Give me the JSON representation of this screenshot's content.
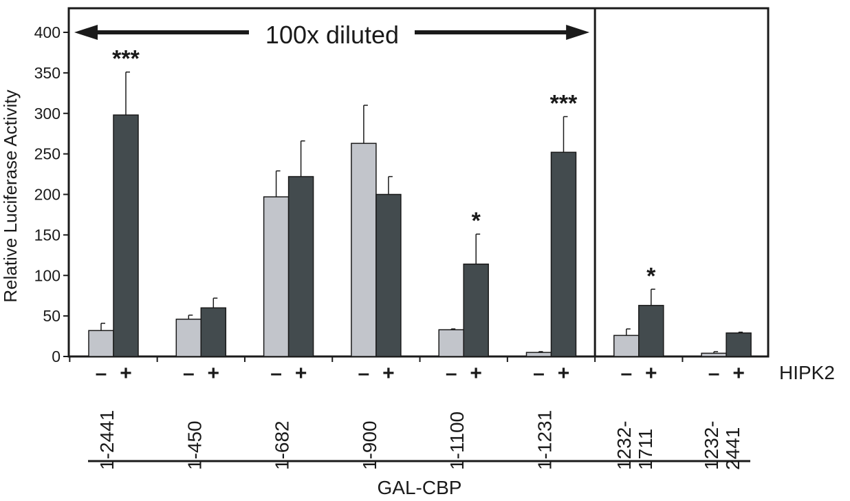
{
  "chart_data": {
    "type": "bar",
    "ylabel": "Relative Luciferase Activity",
    "xlabel": "GAL-CBP",
    "ylim": [
      0,
      400
    ],
    "yticks": [
      "0",
      "50",
      "100",
      "150",
      "200",
      "250",
      "300",
      "350",
      "400"
    ],
    "categories": [
      "1-2441",
      "1-450",
      "1-682",
      "1-900",
      "1-1100",
      "1-1231",
      "1232-\n1711",
      "1232-\n2441"
    ],
    "condition_label": "HIPK2",
    "condition_symbols": [
      "–",
      "+"
    ],
    "series": [
      {
        "condition": "–",
        "color": "#c2c5cb",
        "values": [
          32,
          46,
          197,
          263,
          33,
          5,
          26,
          4
        ],
        "errors": [
          9,
          5,
          32,
          47,
          1,
          1,
          8,
          2
        ]
      },
      {
        "condition": "+",
        "color": "#434b4e",
        "values": [
          298,
          60,
          222,
          200,
          114,
          252,
          63,
          29
        ],
        "errors": [
          53,
          12,
          44,
          22,
          37,
          44,
          20,
          1
        ]
      }
    ],
    "annotations": [
      {
        "category_index": 0,
        "series_index": 1,
        "text": "***"
      },
      {
        "category_index": 4,
        "series_index": 1,
        "text": "*"
      },
      {
        "category_index": 5,
        "series_index": 1,
        "text": "***"
      },
      {
        "category_index": 6,
        "series_index": 1,
        "text": "*"
      }
    ],
    "dilution_label": "100x diluted",
    "dilution_categories": [
      0,
      5
    ],
    "grid": false
  }
}
